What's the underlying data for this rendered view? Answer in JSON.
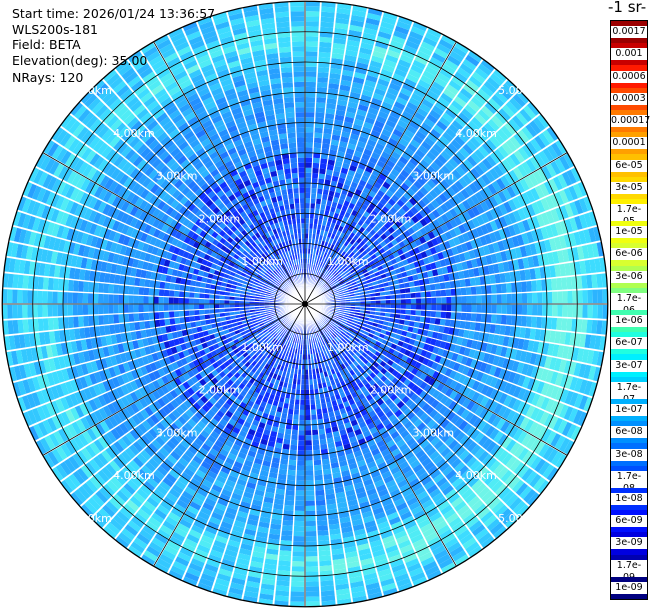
{
  "header": {
    "start_time": "Start time: 2026/01/24 13:36:57",
    "instrument": "WLS200s-181",
    "field": "Field: BETA",
    "elevation": "Elevation(deg): 35.00",
    "nrays": "NRays: 120"
  },
  "colorbar": {
    "title": "-1 sr-",
    "labels": [
      "0.0017",
      "0.001",
      "0.0006",
      "0.0003",
      "0.00017",
      "0.0001",
      "6e-05",
      "3e-05",
      "1.7e-05",
      "1e-05",
      "6e-06",
      "3e-06",
      "1.7e-06",
      "1e-06",
      "6e-07",
      "3e-07",
      "1.7e-07",
      "1e-07",
      "6e-08",
      "3e-08",
      "1.7e-08",
      "1e-08",
      "6e-09",
      "3e-09",
      "1.7e-09",
      "1e-09"
    ],
    "colors": [
      "#9b0000",
      "#c80000",
      "#ff1a00",
      "#ff4a00",
      "#ff7a00",
      "#ffa000",
      "#ffc000",
      "#ffd800",
      "#fff000",
      "#f0ff10",
      "#d8ff30",
      "#b0ff50",
      "#80ff80",
      "#40ffb0",
      "#20ffe0",
      "#00f0ff",
      "#00d0ff",
      "#00b0ff",
      "#0090ff",
      "#0070ff",
      "#0050ff",
      "#0030ff",
      "#0010ff",
      "#0000e0",
      "#0000b0",
      "#000080"
    ]
  },
  "chart_data": {
    "type": "heatmap",
    "projection": "polar-ppi",
    "field": "BETA",
    "elevation_deg": 35.0,
    "n_rays": 120,
    "range_rings_km": [
      1,
      2,
      3,
      4,
      5
    ],
    "ring_labels": [
      "1.00km",
      "2.00km",
      "3.00km",
      "4.00km",
      "5.00km"
    ],
    "max_range_km": 5.5,
    "grid": true,
    "value_scale": "log",
    "value_range": [
      1e-09,
      0.0017
    ]
  }
}
